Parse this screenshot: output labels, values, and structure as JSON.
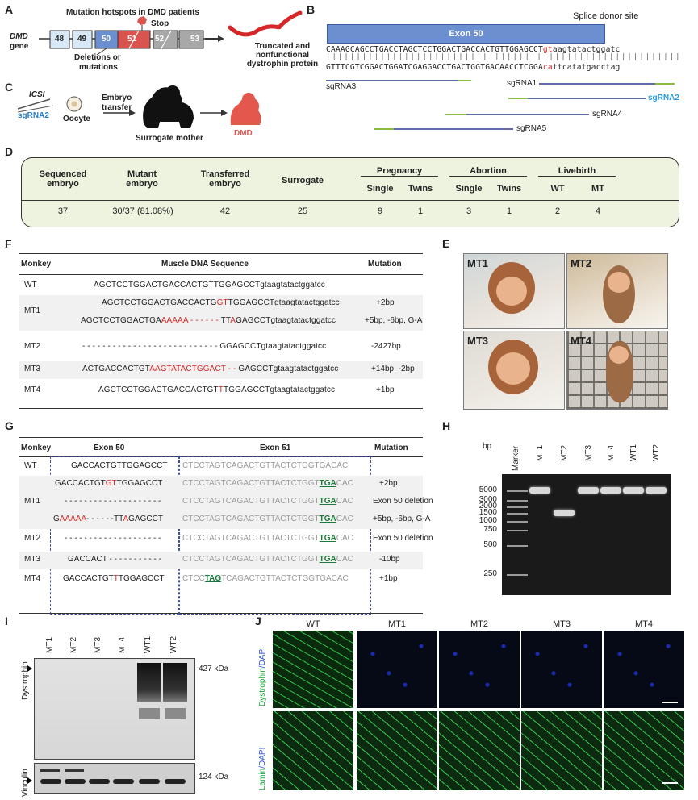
{
  "panels": {
    "A": {
      "label": "A",
      "title": "Mutation hotspots in DMD patients",
      "gene_label": "DMD",
      "gene_sub": "gene",
      "exons": [
        "48",
        "49",
        "50",
        "51",
        "52",
        "53"
      ],
      "stop_label": "Stop",
      "del_label_1": "Deletions or",
      "del_label_2": "mutations",
      "result_1": "Truncated and",
      "result_2": "nonfunctional",
      "result_3": "dystrophin protein"
    },
    "B": {
      "label": "B",
      "splice_label": "Splice donor site",
      "exon_label": "Exon 50",
      "seq_top_main": "CAAAGCAGCCTGACCTAGCTCCTGGACTGACCACTGTTGGAGCCT",
      "seq_top_red": "gt",
      "seq_top_tail": "aagtatactggatc",
      "seq_bot_main": "GTTTCGTCGGACTGGATCGAGGACCTGACTGGTGACAACCTCGGA",
      "seq_bot_red": "ca",
      "seq_bot_tail": "ttcatatgacctag",
      "sgRNAs": [
        "sgRNA3",
        "sgRNA1",
        "sgRNA2",
        "sgRNA4",
        "sgRNA5"
      ]
    },
    "C": {
      "label": "C",
      "icsi": "ICSI",
      "sgrna": "sgRNA2",
      "oocyte": "Oocyte",
      "transfer_1": "Embryo",
      "transfer_2": "transfer",
      "surrogate": "Surrogate mother",
      "dmd": "DMD"
    },
    "D": {
      "label": "D",
      "headers": {
        "sequenced_1": "Sequenced",
        "sequenced_2": "embryo",
        "mutant_1": "Mutant",
        "mutant_2": "embryo",
        "transferred_1": "Transferred",
        "transferred_2": "embryo",
        "surrogate": "Surrogate",
        "pregnancy": "Pregnancy",
        "abortion": "Abortion",
        "livebirth": "Livebirth",
        "single": "Single",
        "twins": "Twins",
        "wt": "WT",
        "mt": "MT"
      },
      "values": {
        "sequenced": "37",
        "mutant": "30/37 (81.08%)",
        "transferred": "42",
        "surrogate": "25",
        "preg_single": "9",
        "preg_twins": "1",
        "abort_single": "3",
        "abort_twins": "1",
        "live_wt": "2",
        "live_mt": "4"
      }
    },
    "F": {
      "label": "F",
      "col_monkey": "Monkey",
      "col_seq": "Muscle DNA Sequence",
      "col_mut": "Mutation",
      "rows": [
        {
          "name": "WT",
          "segs": [
            [
              "AGCTCCTGGACTGACCACTGTTGGAGCCTgtaagtatactggatcc",
              ""
            ]
          ],
          "mut": ""
        },
        {
          "name": "MT1",
          "segs": [
            [
              "AGCTCCTGGACTGACCACTG",
              ""
            ],
            [
              "GT",
              "red"
            ],
            [
              "TGGAGCCTgtaagtatactggatcc",
              ""
            ]
          ],
          "mut": "+2bp"
        },
        {
          "name": "",
          "segs": [
            [
              "AGCTCCTGGACTGA",
              ""
            ],
            [
              "AAAAA - - - - - - ",
              "red"
            ],
            [
              "TT",
              ""
            ],
            [
              "A",
              "red"
            ],
            [
              "GAGCCTgtaagtatactggatcc",
              ""
            ]
          ],
          "mut": "+5bp, -6bp, G-A"
        },
        {
          "name": "MT2",
          "segs": [
            [
              "- - - - - - - - - - - - - - - - - - - - - - - - - - - GGAGCCTgtaagtatactggatcc",
              ""
            ]
          ],
          "mut": "-2427bp"
        },
        {
          "name": "MT3",
          "segs": [
            [
              "ACTGACCACTGT",
              ""
            ],
            [
              "AAGTATACTGGACT - - ",
              "red"
            ],
            [
              "GAGCCTgtaagtatactggatcc",
              ""
            ]
          ],
          "mut": "+14bp, -2bp"
        },
        {
          "name": "MT4",
          "segs": [
            [
              "AGCTCCTGGACTGACCACTGT",
              ""
            ],
            [
              "T",
              "red"
            ],
            [
              "TGGAGCCTgtaagtatactggatcc",
              ""
            ]
          ],
          "mut": "+1bp"
        }
      ]
    },
    "E": {
      "label": "E",
      "monkeys": [
        "MT1",
        "MT2",
        "MT3",
        "MT4"
      ]
    },
    "G": {
      "label": "G",
      "col_monkey": "Monkey",
      "col_ex50": "Exon 50",
      "col_ex51": "Exon 51",
      "col_mut": "Mutation",
      "rows": [
        {
          "name": "WT",
          "e50": [
            [
              "GACCACTGTTGGAGCCT",
              ""
            ]
          ],
          "e51": [
            [
              "CTCCTAGTCAGACTGTTACTCTGGTGACAC",
              "gray"
            ]
          ],
          "mut": ""
        },
        {
          "name": "",
          "e50": [
            [
              "GACCACTGT",
              ""
            ],
            [
              "GT",
              "red"
            ],
            [
              "TGGAGCCT",
              ""
            ]
          ],
          "e51": [
            [
              "CTCCTAGTCAGACTGTTACTCTGGT",
              "gray"
            ],
            [
              "TGA",
              "green"
            ],
            [
              "CAC",
              "gray"
            ]
          ],
          "mut": "+2bp"
        },
        {
          "name": "MT1",
          "e50": [
            [
              "- - - - - - - - - - - - - - - - - - - -",
              ""
            ]
          ],
          "e51": [
            [
              "CTCCTAGTCAGACTGTTACTCTGGT",
              "gray"
            ],
            [
              "TGA",
              "green"
            ],
            [
              "CAC",
              "gray"
            ]
          ],
          "mut": "Exon 50 deletion"
        },
        {
          "name": "",
          "e50": [
            [
              "G",
              ""
            ],
            [
              "AAAAA",
              "red"
            ],
            [
              "- - - - - -TT",
              ""
            ],
            [
              "A",
              "red"
            ],
            [
              "GAGCCT",
              ""
            ]
          ],
          "e51": [
            [
              "CTCCTAGTCAGACTGTTACTCTGGT",
              "gray"
            ],
            [
              "TGA",
              "green"
            ],
            [
              "CAC",
              "gray"
            ]
          ],
          "mut": "+5bp, -6bp, G-A"
        },
        {
          "name": "MT2",
          "e50": [
            [
              "- - - - - - - - - - - - - - - - - - - -",
              ""
            ]
          ],
          "e51": [
            [
              "CTCCTAGTCAGACTGTTACTCTGGT",
              "gray"
            ],
            [
              "TGA",
              "green"
            ],
            [
              "CAC",
              "gray"
            ]
          ],
          "mut": "Exon 50 deletion"
        },
        {
          "name": "MT3",
          "e50": [
            [
              "GACCACT - - - - - - - - - - -",
              ""
            ]
          ],
          "e51": [
            [
              "CTCCTAGTCAGACTGTTACTCTGGT",
              "gray"
            ],
            [
              "TGA",
              "green"
            ],
            [
              "CAC",
              "gray"
            ]
          ],
          "mut": "-10bp"
        },
        {
          "name": "MT4",
          "e50": [
            [
              "GACCACTGT",
              ""
            ],
            [
              "T",
              "red"
            ],
            [
              "TGGAGCCT",
              ""
            ]
          ],
          "e51": [
            [
              "CTCC",
              "gray"
            ],
            [
              "TAG",
              "green"
            ],
            [
              "TCAGACTGTTACTCTGGTGACAC",
              "gray"
            ]
          ],
          "mut": "+1bp"
        }
      ]
    },
    "H": {
      "label": "H",
      "bp_label": "bp",
      "lanes": [
        "Marker",
        "MT1",
        "MT2",
        "MT3",
        "MT4",
        "WT1",
        "WT2"
      ],
      "ladder": [
        "5000",
        "3000",
        "2000",
        "1500",
        "1000",
        "750",
        "500",
        "250"
      ]
    },
    "I": {
      "label": "I",
      "lanes": [
        "MT1",
        "MT2",
        "MT3",
        "MT4",
        "WT1",
        "WT2"
      ],
      "dys_label": "Dystrophin",
      "vin_label": "Vinculin",
      "dys_kda": "427 kDa",
      "vin_kda": "124 kDa"
    },
    "J": {
      "label": "J",
      "cols": [
        "WT",
        "MT1",
        "MT2",
        "MT3",
        "MT4"
      ],
      "row1_a": "Dystrophin",
      "row1_b": "/DAPI",
      "row2_a": "Lamin",
      "row2_b": "/DAPI"
    }
  },
  "colors": {
    "exon_blue": "#6c8fd0",
    "exon_red": "#d9534f",
    "exon_gray": "#a8a8a8",
    "exon_light": "#d9e8f7",
    "table_green": "#eef3df",
    "sgrna_green": "#8cbd3f",
    "sgrna_navy": "#2b3a8a"
  }
}
